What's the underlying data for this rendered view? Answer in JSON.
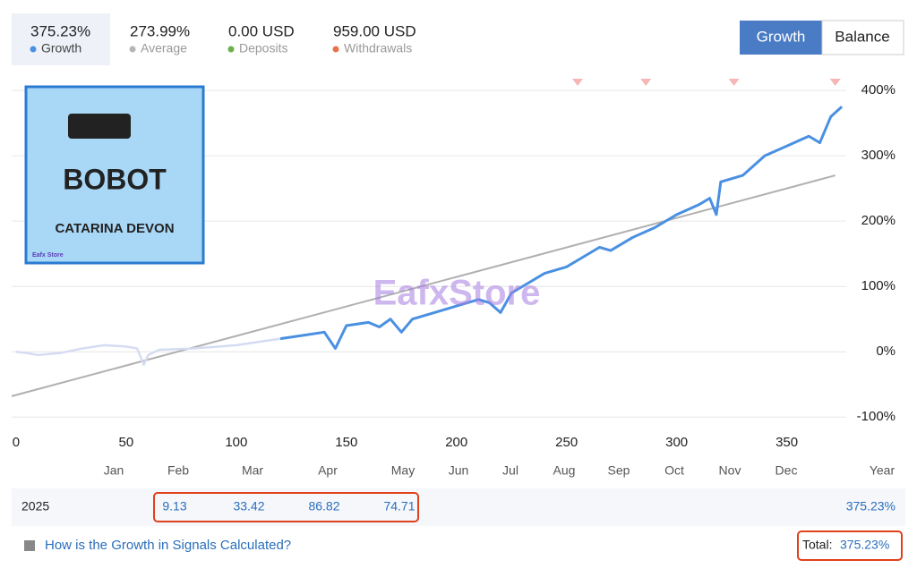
{
  "header": {
    "stats": [
      {
        "value": "375.23%",
        "label": "Growth",
        "color": "#4a90e2"
      },
      {
        "value": "273.99%",
        "label": "Average",
        "color": "#b5b5b5"
      },
      {
        "value": "0.00 USD",
        "label": "Deposits",
        "color": "#6ab04c"
      },
      {
        "value": "959.00 USD",
        "label": "Withdrawals",
        "color": "#e8734a"
      }
    ],
    "buttons": [
      "Growth",
      "Balance"
    ]
  },
  "logo": {
    "title": "BOBOT",
    "subtitle": "CATARINA DEVON",
    "brand": "Eafx Store"
  },
  "watermark": "EafxStore",
  "chart_data": {
    "type": "line",
    "x": [
      0,
      5,
      10,
      20,
      30,
      40,
      50,
      55,
      58,
      60,
      65,
      80,
      100,
      110,
      120,
      130,
      140,
      145,
      150,
      160,
      165,
      170,
      175,
      180,
      190,
      200,
      210,
      215,
      220,
      225,
      240,
      250,
      255,
      265,
      270,
      280,
      290,
      300,
      310,
      315,
      318,
      320,
      330,
      340,
      350,
      360,
      365,
      370,
      375
    ],
    "series": [
      {
        "name": "Growth",
        "color": "#4a90e2",
        "faded_color": "#d5dcf2",
        "active_from": 120,
        "values": [
          0,
          -2,
          -5,
          -2,
          5,
          10,
          8,
          5,
          -20,
          -5,
          3,
          5,
          10,
          15,
          20,
          25,
          30,
          5,
          40,
          45,
          38,
          50,
          30,
          50,
          60,
          70,
          80,
          75,
          60,
          90,
          120,
          130,
          140,
          160,
          155,
          175,
          190,
          210,
          225,
          235,
          210,
          260,
          270,
          300,
          315,
          330,
          320,
          360,
          375.23
        ]
      },
      {
        "name": "Average",
        "color": "#b0b0b0",
        "x": [
          -2,
          372
        ],
        "values": [
          -68,
          270
        ]
      }
    ],
    "markers": {
      "x": [
        255,
        286,
        326,
        372
      ],
      "color": "#f6b6b6"
    },
    "xlim": [
      -2,
      377
    ],
    "xticks": [
      0,
      50,
      100,
      150,
      200,
      250,
      300,
      350
    ],
    "ylim": [
      -112,
      418
    ],
    "yticks": [
      {
        "value": -100,
        "label": "-100%"
      },
      {
        "value": 0,
        "label": "0%"
      },
      {
        "value": 100,
        "label": "100%"
      },
      {
        "value": 200,
        "label": "200%"
      },
      {
        "value": 300,
        "label": "300%"
      },
      {
        "value": 400,
        "label": "400%"
      }
    ],
    "grid": true
  },
  "table": {
    "columns": [
      "Jan",
      "Feb",
      "Mar",
      "Apr",
      "May",
      "Jun",
      "Jul",
      "Aug",
      "Sep",
      "Oct",
      "Nov",
      "Dec",
      "Year"
    ],
    "year": "2025",
    "months": [
      null,
      9.13,
      33.42,
      86.82,
      74.71,
      null,
      null,
      null,
      null,
      null,
      null,
      null
    ],
    "year_total": "375.23%"
  },
  "footer": {
    "link": "How is the Growth in Signals Calculated?",
    "total_label": "Total:",
    "total_value": "375.23%"
  }
}
